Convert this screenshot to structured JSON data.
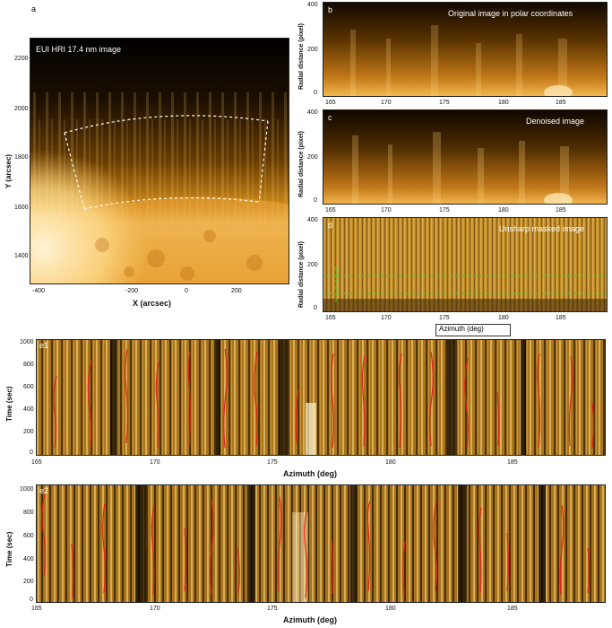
{
  "panel_a": {
    "letter": "a",
    "title": "EUI HRI 17.4 nm image",
    "xlabel": "X (arcsec)",
    "ylabel": "Y (arcsec)",
    "xticks": [
      "-400",
      "-200",
      "0",
      "200"
    ],
    "yticks": [
      "2200",
      "2000",
      "1800",
      "1600",
      "1400"
    ]
  },
  "panel_b": {
    "letter": "b",
    "title": "Original image in polar coordinates",
    "ylabel": "Radial distance (pixel)",
    "yticks": [
      "400",
      "200",
      "0"
    ]
  },
  "panel_c": {
    "letter": "c",
    "title": "Denoised image",
    "ylabel": "Radial distance (pixel)",
    "yticks": [
      "400",
      "200",
      "0"
    ]
  },
  "panel_d": {
    "letter": "d",
    "title": "Unsharp masked image",
    "ylabel": "Radial distance (pixel)",
    "yticks": [
      "400",
      "200",
      "0"
    ],
    "xlabel": "Azimuth (deg)"
  },
  "polar_xticks": [
    "165",
    "170",
    "175",
    "180",
    "185"
  ],
  "panel_e1": {
    "letter": "e1",
    "ylabel": "Time (sec)",
    "xlabel": "Azimuth (deg)",
    "yticks": [
      "1000",
      "800",
      "600",
      "400",
      "200",
      "0"
    ]
  },
  "panel_e2": {
    "letter": "e2",
    "ylabel": "Time (sec)",
    "xlabel": "Azimuth (deg)",
    "yticks": [
      "1000",
      "800",
      "600",
      "400",
      "200",
      "0"
    ]
  },
  "colors": {
    "aia_orange": "#e89a1c",
    "trace_red": "#e0201a",
    "guide_green": "#38d13a"
  }
}
